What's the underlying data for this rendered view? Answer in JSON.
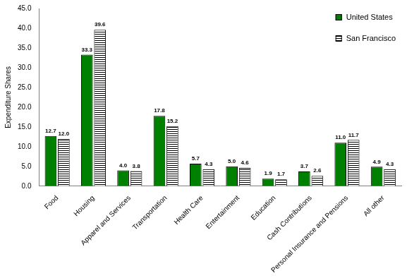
{
  "chart_data": {
    "type": "bar",
    "categories": [
      "Food",
      "Housing",
      "Apparel and Services",
      "Transportation",
      "Health Care",
      "Entertainment",
      "Education",
      "Cash Contributions",
      "Personal Insurance and Pensions",
      "All other"
    ],
    "series": [
      {
        "name": "United States",
        "color": "#008000",
        "values": [
          12.7,
          33.3,
          4.0,
          17.8,
          5.7,
          5.0,
          1.9,
          3.7,
          11.0,
          4.9
        ],
        "value_labels": [
          "12.7",
          "33.3",
          "4.0",
          "17.8",
          "5.7",
          "5.0",
          "1.9",
          "3.7",
          "11.0",
          "4.9"
        ]
      },
      {
        "name": "San Francisco",
        "color": "#ffffff",
        "values": [
          12.0,
          39.6,
          3.8,
          15.2,
          4.3,
          4.6,
          1.7,
          2.6,
          11.7,
          4.3
        ],
        "value_labels": [
          "12.0",
          "39.6",
          "3.8",
          "15.2",
          "4.3",
          "4.6",
          "1.7",
          "2.6",
          "11.7",
          "4.3"
        ]
      }
    ],
    "y_label": "Expenditure Shares",
    "ylim": [
      0,
      45
    ],
    "yticks": [
      {
        "value": 0,
        "label": "0.0"
      },
      {
        "value": 5,
        "label": "5.0"
      },
      {
        "value": 10,
        "label": "10.0"
      },
      {
        "value": 15,
        "label": "15.0"
      },
      {
        "value": 20,
        "label": "20.0"
      },
      {
        "value": 25,
        "label": "25.0"
      },
      {
        "value": 30,
        "label": "30.0"
      },
      {
        "value": 35,
        "label": "35.0"
      },
      {
        "value": 40,
        "label": "40.0"
      },
      {
        "value": 45,
        "label": "45.0"
      }
    ],
    "grid": false,
    "legend": "top-right",
    "data_labels": true
  }
}
